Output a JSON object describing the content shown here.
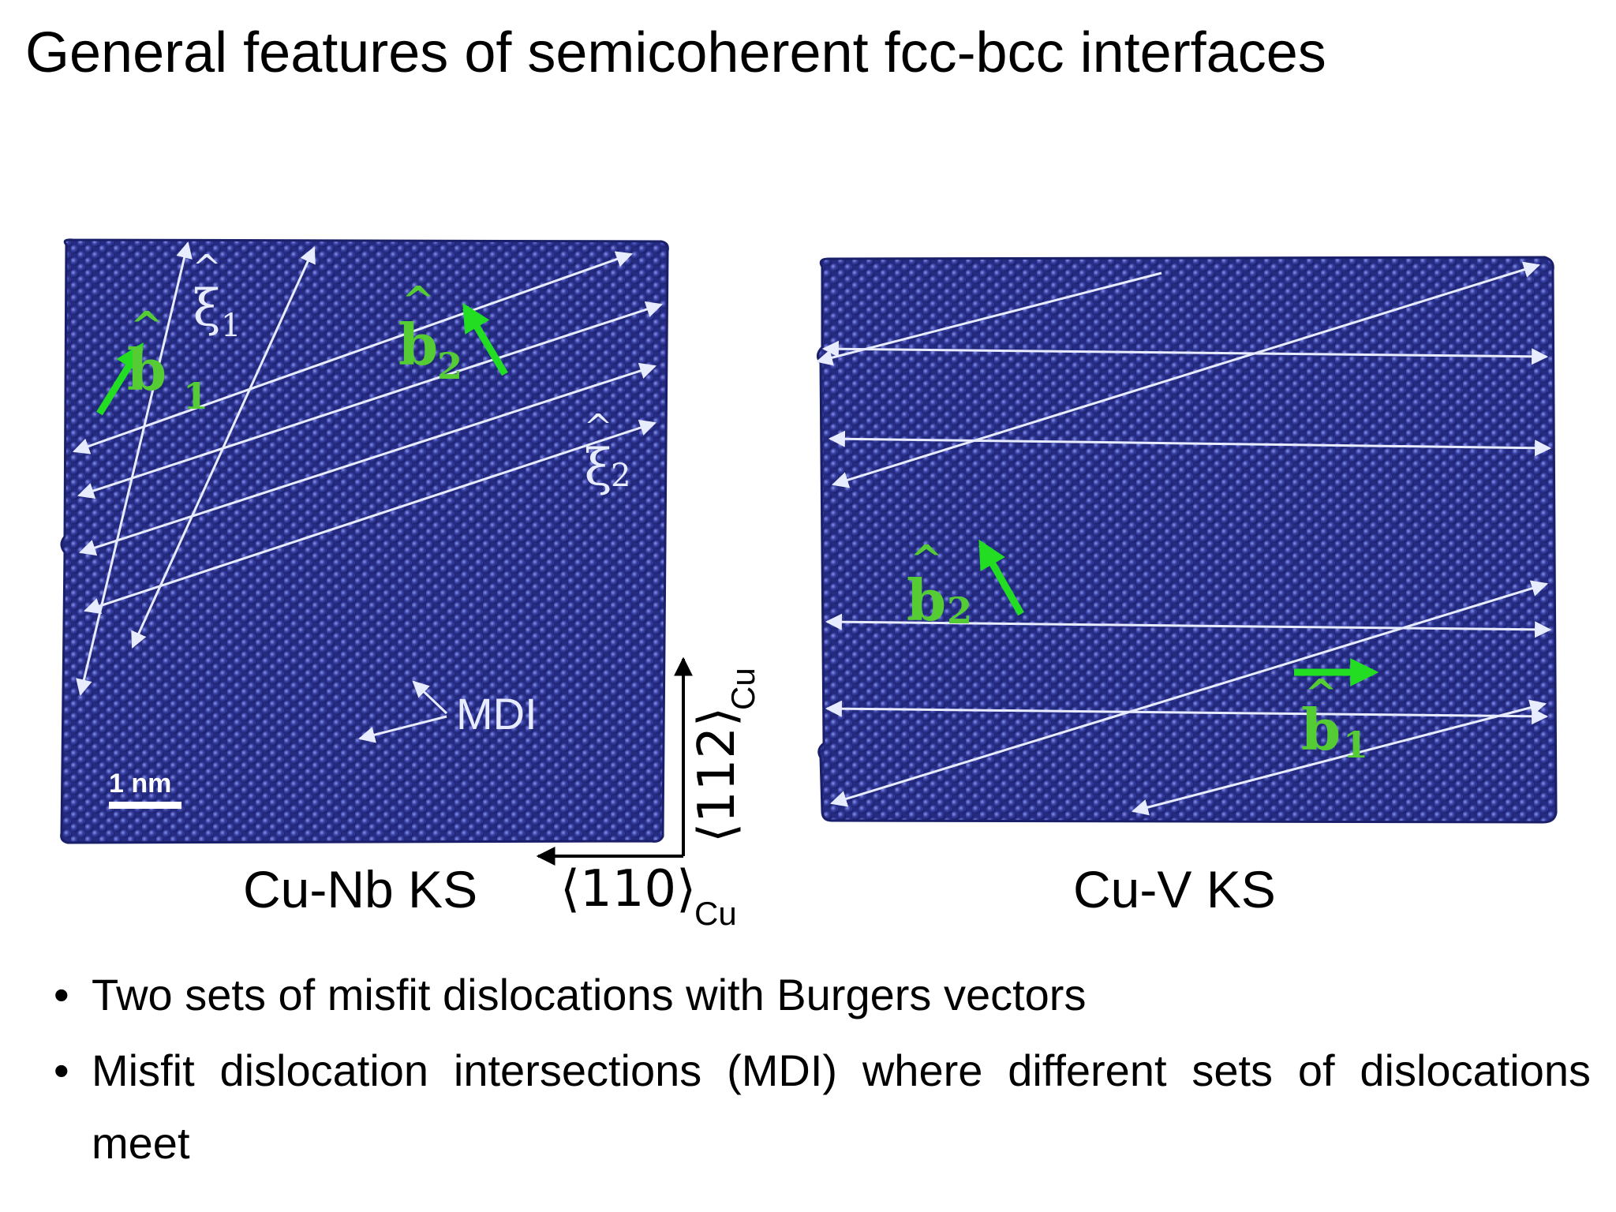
{
  "slide": {
    "title": "General features of semicoherent fcc-bcc interfaces"
  },
  "left_panel": {
    "caption": "Cu-Nb KS",
    "scale_bar": "1 nm",
    "mdi_label": "MDI",
    "xi1_label": "ξ",
    "xi1_sub": "1",
    "xi2_label": "ξ",
    "xi2_sub": "2",
    "b1_label": "b",
    "b1_sub": "1",
    "b2_label": "b",
    "b2_sub": "2",
    "axis_x_label": "⟨110⟩",
    "axis_x_sub": "Cu",
    "axis_y_label": "⟨112⟩",
    "axis_y_sub": "Cu"
  },
  "right_panel": {
    "caption": "Cu-V KS",
    "b1_label": "b",
    "b1_sub": "1",
    "b2_label": "b",
    "b2_sub": "2"
  },
  "bullets": [
    "Two sets of misfit dislocations with Burgers vectors",
    "Misfit dislocation intersections (MDI) where different sets of dislocations meet"
  ],
  "colors": {
    "atoms": "#2e3592",
    "dislocation_lines": "#e8ecff",
    "burgers_arrows": "#22dd22",
    "burgers_labels": "#55cc33"
  }
}
